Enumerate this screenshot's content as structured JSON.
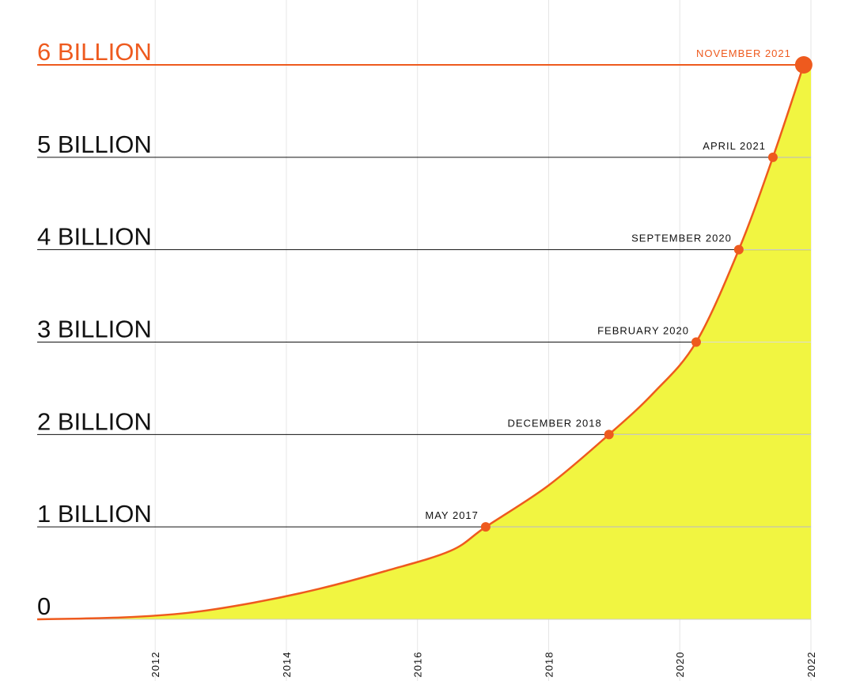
{
  "chart_data": {
    "type": "area",
    "title": "",
    "xlabel": "",
    "ylabel": "",
    "xlim": [
      2010.2,
      2022
    ],
    "ylim": [
      0,
      6
    ],
    "x_ticks": [
      "2012",
      "2014",
      "2016",
      "2018",
      "2020",
      "2022"
    ],
    "y_ticks": [
      {
        "value": 0,
        "label": "0"
      },
      {
        "value": 1,
        "label": "1 BILLION"
      },
      {
        "value": 2,
        "label": "2 BILLION"
      },
      {
        "value": 3,
        "label": "3 BILLION"
      },
      {
        "value": 4,
        "label": "4 BILLION"
      },
      {
        "value": 5,
        "label": "5 BILLION"
      },
      {
        "value": 6,
        "label": "6 BILLION"
      }
    ],
    "milestones": [
      {
        "x": 2017.04,
        "y": 1,
        "label": "MAY 2017"
      },
      {
        "x": 2018.92,
        "y": 2,
        "label": "DECEMBER 2018"
      },
      {
        "x": 2020.25,
        "y": 3,
        "label": "FEBRUARY 2020"
      },
      {
        "x": 2020.9,
        "y": 4,
        "label": "SEPTEMBER 2020"
      },
      {
        "x": 2021.42,
        "y": 5,
        "label": "APRIL 2021"
      },
      {
        "x": 2021.89,
        "y": 6,
        "label": "NOVEMBER 2021"
      }
    ],
    "series": [
      {
        "x": [
          2010.2,
          2011.5,
          2012.5,
          2013.5,
          2014.5,
          2015.5,
          2016.5,
          2017.04,
          2018.0,
          2018.92,
          2019.6,
          2020.25,
          2020.9,
          2021.42,
          2021.89
        ],
        "values": [
          0,
          0.02,
          0.07,
          0.18,
          0.33,
          0.52,
          0.74,
          1.0,
          1.45,
          2.0,
          2.45,
          3.0,
          4.0,
          5.0,
          6.0
        ]
      }
    ],
    "grid": true,
    "colors": {
      "line": "#ee5a1e",
      "fill": "#f1f541",
      "highlight_text": "#ee5a1e",
      "text": "#111111",
      "grid": "#e6e6e6"
    }
  }
}
